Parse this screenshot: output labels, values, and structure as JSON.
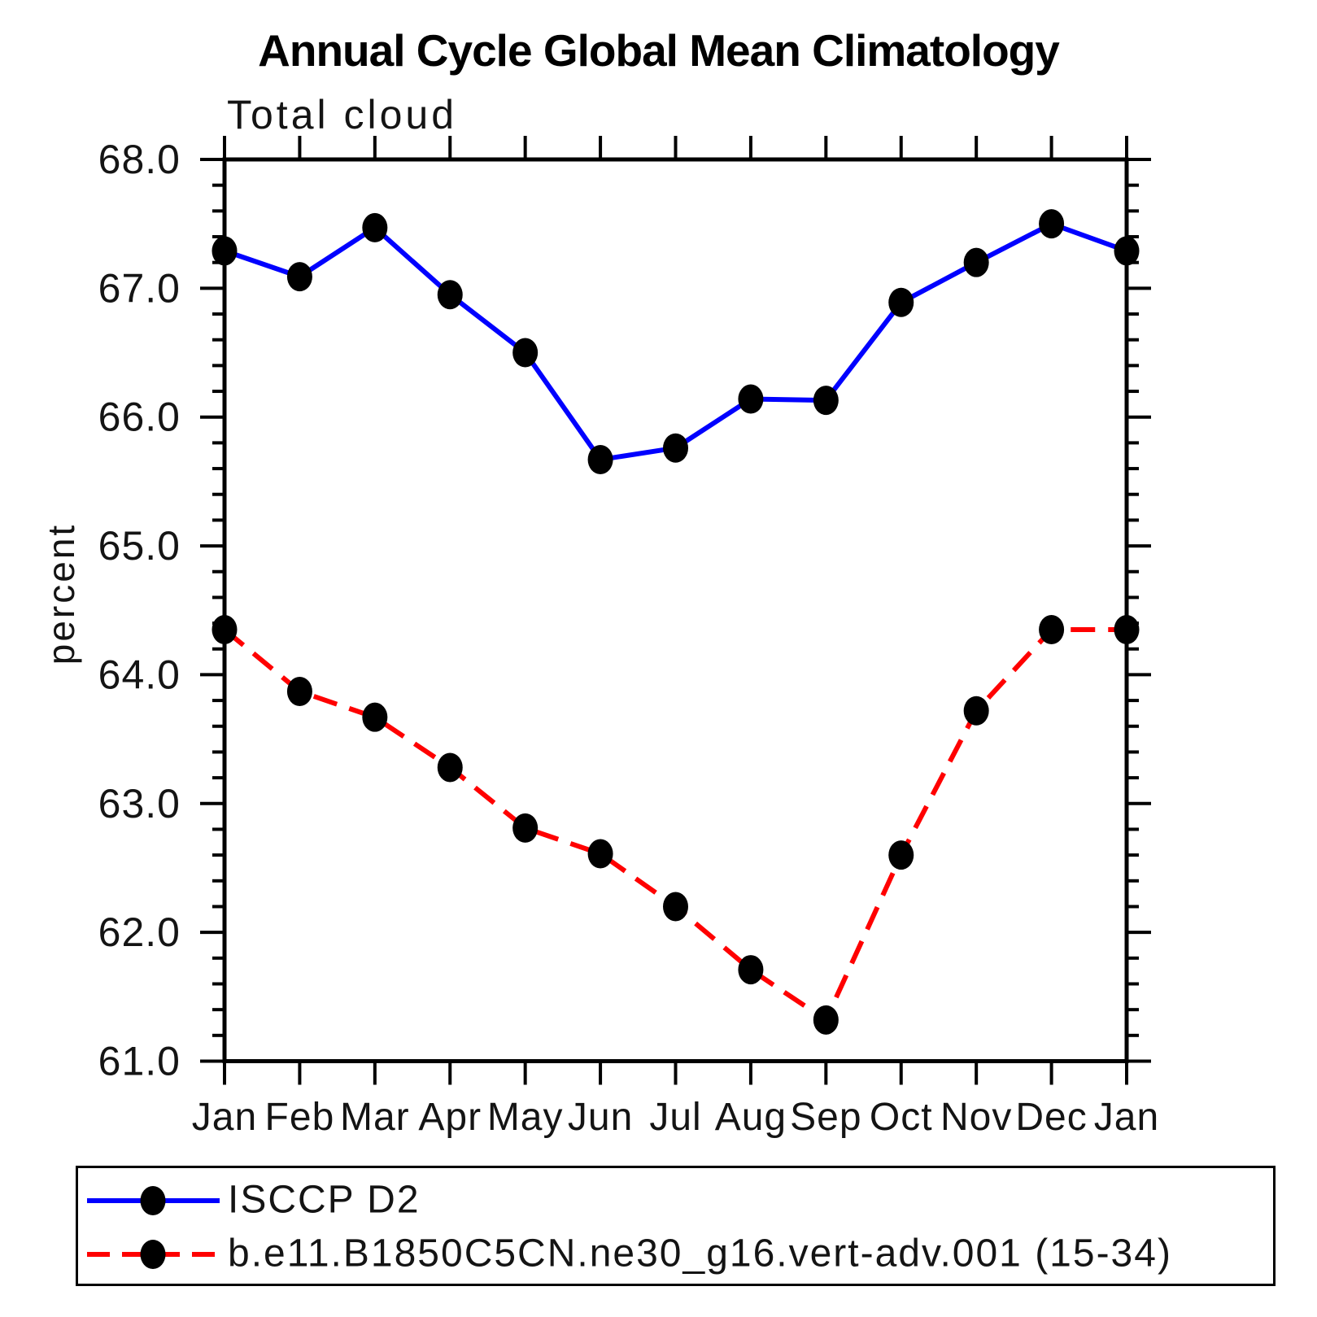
{
  "header": {
    "title": "Annual Cycle Global Mean Climatology",
    "subtitle": "Total cloud",
    "ylabel": "percent"
  },
  "chart_data": {
    "type": "line",
    "title": "Annual Cycle Global Mean Climatology",
    "subtitle": "Total cloud",
    "xlabel": "",
    "ylabel": "percent",
    "categories": [
      "Jan",
      "Feb",
      "Mar",
      "Apr",
      "May",
      "Jun",
      "Jul",
      "Aug",
      "Sep",
      "Oct",
      "Nov",
      "Dec",
      "Jan"
    ],
    "ylim": [
      61.0,
      68.0
    ],
    "ytick_step": 1.0,
    "ytick_minor_step": 0.2,
    "grid": false,
    "frame": "box",
    "legend_position": "bottom",
    "background_color": "#ffffff",
    "axis_color": "#000000",
    "marker_color": "#000000",
    "series": [
      {
        "name": "ISCCP D2",
        "color": "#0000ff",
        "line_style": "solid",
        "marker": "filled-circle",
        "values": [
          67.29,
          67.09,
          67.47,
          66.95,
          66.5,
          65.67,
          65.76,
          66.14,
          66.13,
          66.89,
          67.2,
          67.5,
          67.29
        ]
      },
      {
        "name": "b.e11.B1850C5CN.ne30_g16.vert-adv.001 (15-34)",
        "color": "#ff0000",
        "line_style": "dashed",
        "marker": "filled-circle",
        "values": [
          64.35,
          63.87,
          63.67,
          63.28,
          62.81,
          62.61,
          62.2,
          61.71,
          61.32,
          62.6,
          63.72,
          64.35,
          64.35
        ]
      }
    ]
  }
}
